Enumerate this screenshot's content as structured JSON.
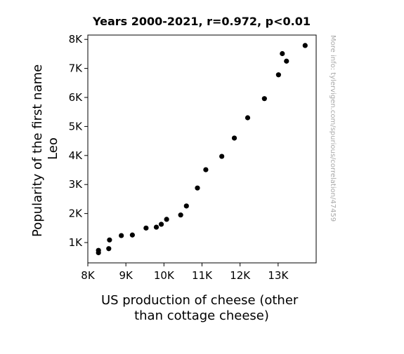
{
  "chart_data": {
    "type": "scatter",
    "title": "Years 2000-2021, r=0.972, p<0.01",
    "xlabel_lines": [
      "US production of cheese (other",
      "than cottage cheese)"
    ],
    "ylabel_lines": [
      "Popularity of the first name",
      "Leo"
    ],
    "side_note": "More info: tylervigen.com/spurious/correlation/47459",
    "xlim": [
      8000,
      14000
    ],
    "ylim": [
      300,
      8150
    ],
    "x_ticks": [
      {
        "value": 8000,
        "label": "8K"
      },
      {
        "value": 9000,
        "label": "9K"
      },
      {
        "value": 10000,
        "label": "10K"
      },
      {
        "value": 11000,
        "label": "11K"
      },
      {
        "value": 12000,
        "label": "12K"
      },
      {
        "value": 13000,
        "label": "13K"
      }
    ],
    "y_ticks": [
      {
        "value": 1000,
        "label": "1K"
      },
      {
        "value": 2000,
        "label": "2K"
      },
      {
        "value": 3000,
        "label": "3K"
      },
      {
        "value": 4000,
        "label": "4K"
      },
      {
        "value": 5000,
        "label": "5K"
      },
      {
        "value": 6000,
        "label": "6K"
      },
      {
        "value": 7000,
        "label": "7K"
      },
      {
        "value": 8000,
        "label": "8K"
      }
    ],
    "grid": false,
    "marker_color": "#000000",
    "points": [
      {
        "x": 8280,
        "y": 650
      },
      {
        "x": 8280,
        "y": 730
      },
      {
        "x": 8550,
        "y": 790
      },
      {
        "x": 8570,
        "y": 1090
      },
      {
        "x": 8880,
        "y": 1240
      },
      {
        "x": 9170,
        "y": 1260
      },
      {
        "x": 9530,
        "y": 1500
      },
      {
        "x": 9800,
        "y": 1530
      },
      {
        "x": 9930,
        "y": 1630
      },
      {
        "x": 10070,
        "y": 1800
      },
      {
        "x": 10440,
        "y": 1950
      },
      {
        "x": 10590,
        "y": 2260
      },
      {
        "x": 10880,
        "y": 2880
      },
      {
        "x": 11100,
        "y": 3510
      },
      {
        "x": 11520,
        "y": 3970
      },
      {
        "x": 11850,
        "y": 4600
      },
      {
        "x": 12200,
        "y": 5300
      },
      {
        "x": 12640,
        "y": 5960
      },
      {
        "x": 13010,
        "y": 6780
      },
      {
        "x": 13110,
        "y": 7510
      },
      {
        "x": 13220,
        "y": 7250
      },
      {
        "x": 13710,
        "y": 7790
      }
    ]
  }
}
